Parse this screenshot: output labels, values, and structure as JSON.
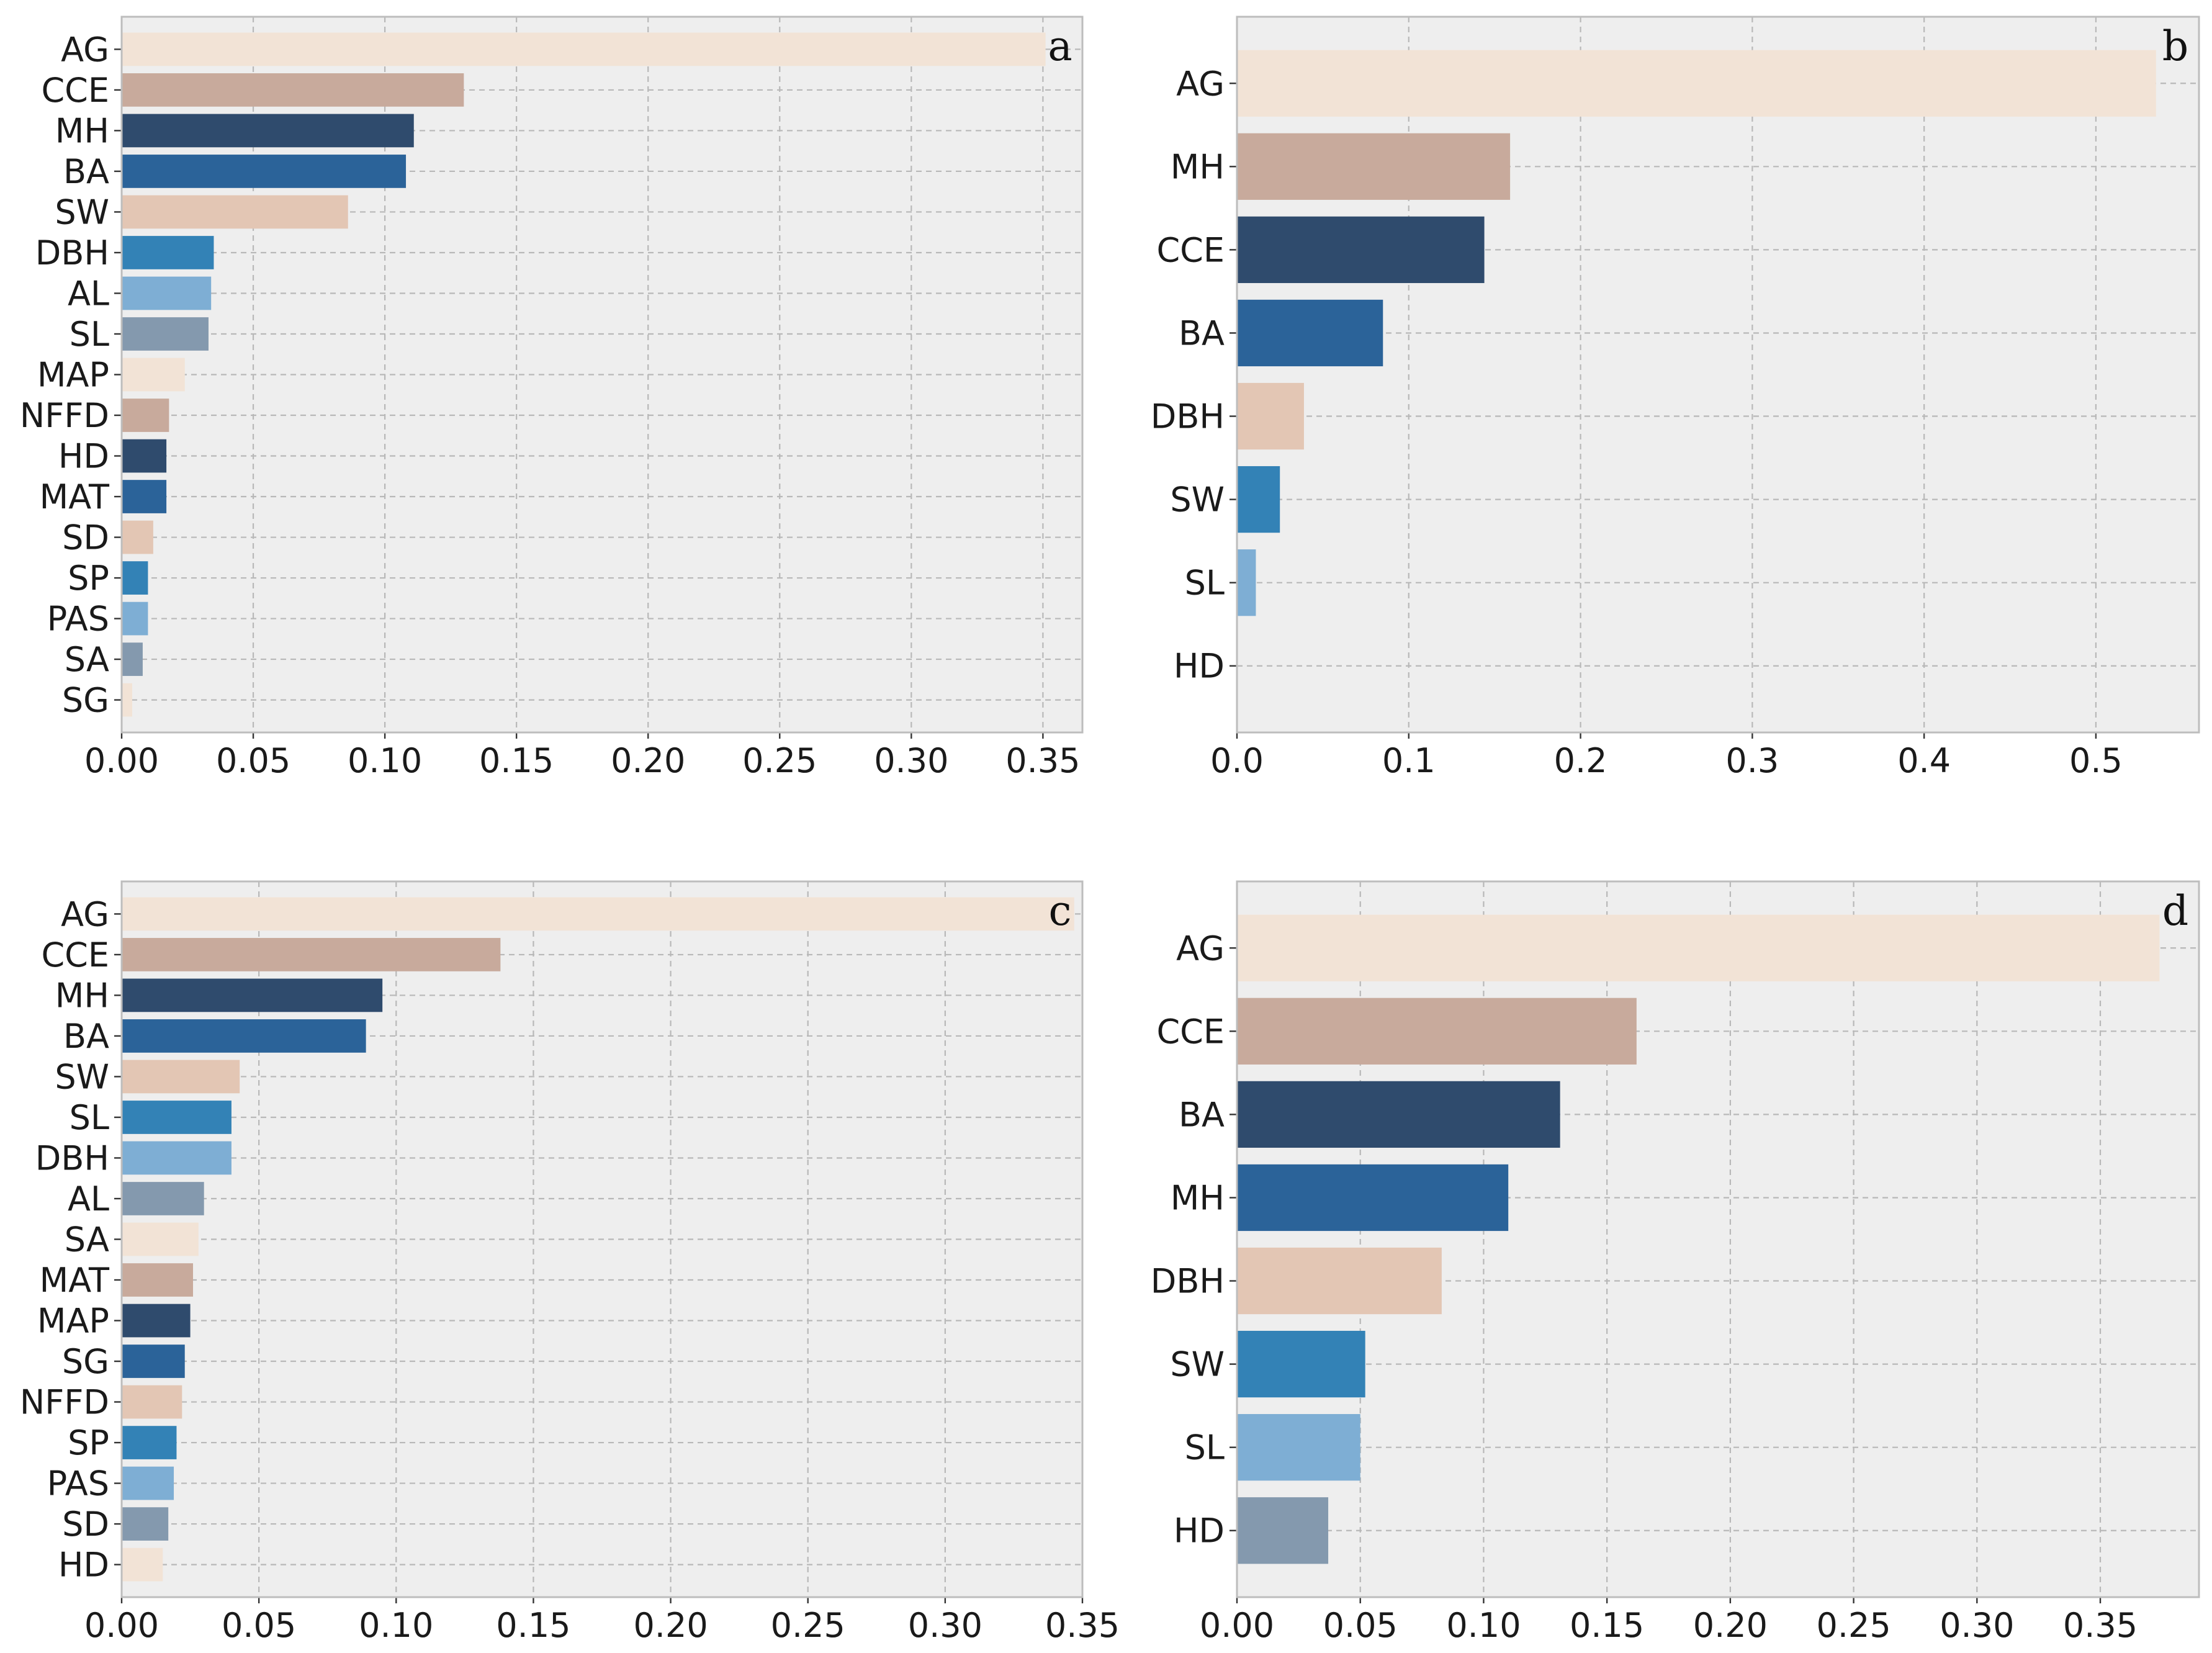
{
  "palette": [
    "#f2e3d6",
    "#c8aa9c",
    "#2f4b6d",
    "#2b6399",
    "#e3c6b4",
    "#3382b6",
    "#7eaed4",
    "#8499ae"
  ],
  "chart_data": [
    {
      "type": "bar",
      "orientation": "horizontal",
      "panel_label": "a",
      "categories": [
        "AG",
        "CCE",
        "MH",
        "BA",
        "SW",
        "DBH",
        "AL",
        "SL",
        "MAP",
        "NFFD",
        "HD",
        "MAT",
        "SD",
        "SP",
        "PAS",
        "SA",
        "SG"
      ],
      "values": [
        0.351,
        0.13,
        0.111,
        0.108,
        0.086,
        0.035,
        0.034,
        0.033,
        0.024,
        0.018,
        0.017,
        0.017,
        0.012,
        0.01,
        0.01,
        0.008,
        0.004
      ],
      "xlim": [
        0,
        0.365
      ],
      "xticks": [
        "0.00",
        "0.05",
        "0.10",
        "0.15",
        "0.20",
        "0.25",
        "0.30",
        "0.35"
      ],
      "tick_values": [
        0,
        0.05,
        0.1,
        0.15,
        0.2,
        0.25,
        0.3,
        0.35
      ],
      "grid": true
    },
    {
      "type": "bar",
      "orientation": "horizontal",
      "panel_label": "b",
      "categories": [
        "AG",
        "MH",
        "CCE",
        "BA",
        "DBH",
        "SW",
        "SL",
        "HD"
      ],
      "values": [
        0.535,
        0.159,
        0.144,
        0.085,
        0.039,
        0.025,
        0.011,
        0.0
      ],
      "xlim": [
        0,
        0.56
      ],
      "xticks": [
        "0.0",
        "0.1",
        "0.2",
        "0.3",
        "0.4",
        "0.5"
      ],
      "tick_values": [
        0,
        0.1,
        0.2,
        0.3,
        0.4,
        0.5
      ],
      "grid": true
    },
    {
      "type": "bar",
      "orientation": "horizontal",
      "panel_label": "c",
      "categories": [
        "AG",
        "CCE",
        "MH",
        "BA",
        "SW",
        "SL",
        "DBH",
        "AL",
        "SA",
        "MAT",
        "MAP",
        "SG",
        "NFFD",
        "SP",
        "PAS",
        "SD",
        "HD"
      ],
      "values": [
        0.347,
        0.138,
        0.095,
        0.089,
        0.043,
        0.04,
        0.04,
        0.03,
        0.028,
        0.026,
        0.025,
        0.023,
        0.022,
        0.02,
        0.019,
        0.017,
        0.015
      ],
      "xlim": [
        0,
        0.35
      ],
      "xticks": [
        "0.00",
        "0.05",
        "0.10",
        "0.15",
        "0.20",
        "0.25",
        "0.30",
        "0.35"
      ],
      "tick_values": [
        0,
        0.05,
        0.1,
        0.15,
        0.2,
        0.25,
        0.3,
        0.35
      ],
      "grid": true
    },
    {
      "type": "bar",
      "orientation": "horizontal",
      "panel_label": "d",
      "categories": [
        "AG",
        "CCE",
        "BA",
        "MH",
        "DBH",
        "SW",
        "SL",
        "HD"
      ],
      "values": [
        0.374,
        0.162,
        0.131,
        0.11,
        0.083,
        0.052,
        0.05,
        0.037
      ],
      "xlim": [
        0,
        0.39
      ],
      "xticks": [
        "0.00",
        "0.05",
        "0.10",
        "0.15",
        "0.20",
        "0.25",
        "0.30",
        "0.35"
      ],
      "tick_values": [
        0,
        0.05,
        0.1,
        0.15,
        0.2,
        0.25,
        0.3,
        0.35
      ],
      "grid": true
    }
  ]
}
